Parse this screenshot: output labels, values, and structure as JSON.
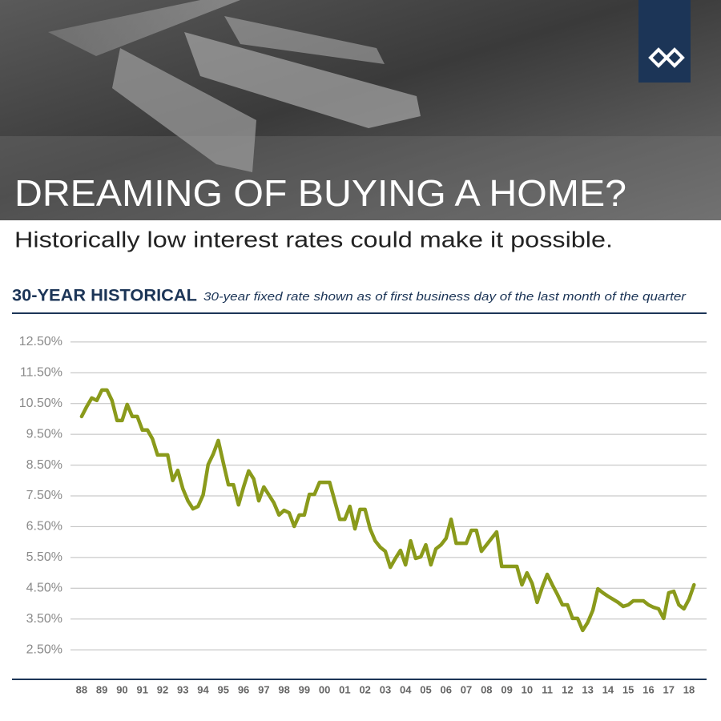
{
  "header": {
    "title": "DREAMING OF BUYING A HOME?",
    "subtitle": "Historically low interest rates could make it possible."
  },
  "chart_data": {
    "type": "line",
    "title": "30-YEAR HISTORICAL",
    "subtitle": "30-year fixed rate shown as of first business day of the last month of the quarter",
    "color": "#8a9a1b",
    "x": [
      1988,
      1988.25,
      1988.5,
      1988.75,
      1989,
      1989.25,
      1989.5,
      1989.75,
      1990,
      1990.25,
      1990.5,
      1990.75,
      1991,
      1991.25,
      1991.5,
      1991.75,
      1992,
      1992.25,
      1992.5,
      1992.75,
      1993,
      1993.25,
      1993.5,
      1993.75,
      1994,
      1994.25,
      1994.5,
      1994.75,
      1995,
      1995.25,
      1995.5,
      1995.75,
      1996,
      1996.25,
      1996.5,
      1996.75,
      1997,
      1997.25,
      1997.5,
      1997.75,
      1998,
      1998.25,
      1998.5,
      1998.75,
      1999,
      1999.25,
      1999.5,
      1999.75,
      2000,
      2000.25,
      2000.5,
      2000.75,
      2001,
      2001.25,
      2001.5,
      2001.75,
      2002,
      2002.25,
      2002.5,
      2002.75,
      2003,
      2003.25,
      2003.5,
      2003.75,
      2004,
      2004.25,
      2004.5,
      2004.75,
      2005,
      2005.25,
      2005.5,
      2005.75,
      2006,
      2006.25,
      2006.5,
      2006.75,
      2007,
      2007.25,
      2007.5,
      2007.75,
      2008,
      2008.25,
      2008.5,
      2008.75,
      2009,
      2009.25,
      2009.5,
      2009.75,
      2010,
      2010.25,
      2010.5,
      2010.75,
      2011,
      2011.25,
      2011.5,
      2011.75,
      2012,
      2012.25,
      2012.5,
      2012.75,
      2013,
      2013.25,
      2013.5,
      2013.75,
      2014,
      2014.25,
      2014.5,
      2014.75,
      2015,
      2015.25,
      2015.5,
      2015.75,
      2016,
      2016.25,
      2016.5,
      2016.75,
      2017,
      2017.25,
      2017.5,
      2017.75,
      2018,
      2018.25
    ],
    "values": [
      10.08,
      10.4,
      10.68,
      10.6,
      10.94,
      10.94,
      10.6,
      9.95,
      9.95,
      10.47,
      10.08,
      10.08,
      9.64,
      9.64,
      9.35,
      8.83,
      8.83,
      8.83,
      8.0,
      8.33,
      7.73,
      7.34,
      7.08,
      7.16,
      7.53,
      8.52,
      8.86,
      9.3,
      8.57,
      7.86,
      7.86,
      7.21,
      7.79,
      8.31,
      8.05,
      7.34,
      7.79,
      7.53,
      7.27,
      6.88,
      7.03,
      6.95,
      6.51,
      6.88,
      6.88,
      7.55,
      7.55,
      7.94,
      7.94,
      7.94,
      7.34,
      6.74,
      6.74,
      7.16,
      6.43,
      7.06,
      7.06,
      6.43,
      6.04,
      5.83,
      5.7,
      5.18,
      5.47,
      5.73,
      5.26,
      6.04,
      5.47,
      5.52,
      5.91,
      5.26,
      5.78,
      5.91,
      6.12,
      6.74,
      5.96,
      5.96,
      5.96,
      6.38,
      6.38,
      5.7,
      5.91,
      6.12,
      6.33,
      5.21,
      5.21,
      5.21,
      5.21,
      4.61,
      5.0,
      4.66,
      4.04,
      4.53,
      4.95,
      4.61,
      4.3,
      3.96,
      3.96,
      3.52,
      3.52,
      3.13,
      3.39,
      3.78,
      4.48,
      4.35,
      4.24,
      4.14,
      4.04,
      3.91,
      3.96,
      4.09,
      4.09,
      4.09,
      3.96,
      3.88,
      3.83,
      3.52,
      4.35,
      4.4,
      3.96,
      3.83,
      4.14,
      4.61
    ],
    "xlim": [
      1987.45,
      2018.87
    ],
    "xticks": [
      {
        "value": 1988,
        "label": "88"
      },
      {
        "value": 1989,
        "label": "89"
      },
      {
        "value": 1990,
        "label": "90"
      },
      {
        "value": 1991,
        "label": "91"
      },
      {
        "value": 1992,
        "label": "92"
      },
      {
        "value": 1993,
        "label": "93"
      },
      {
        "value": 1994,
        "label": "94"
      },
      {
        "value": 1995,
        "label": "95"
      },
      {
        "value": 1996,
        "label": "96"
      },
      {
        "value": 1997,
        "label": "97"
      },
      {
        "value": 1998,
        "label": "98"
      },
      {
        "value": 1999,
        "label": "99"
      },
      {
        "value": 2000,
        "label": "00"
      },
      {
        "value": 2001,
        "label": "01"
      },
      {
        "value": 2002,
        "label": "02"
      },
      {
        "value": 2003,
        "label": "03"
      },
      {
        "value": 2004,
        "label": "04"
      },
      {
        "value": 2005,
        "label": "05"
      },
      {
        "value": 2006,
        "label": "06"
      },
      {
        "value": 2007,
        "label": "07"
      },
      {
        "value": 2008,
        "label": "08"
      },
      {
        "value": 2009,
        "label": "09"
      },
      {
        "value": 2010,
        "label": "10"
      },
      {
        "value": 2011,
        "label": "11"
      },
      {
        "value": 2012,
        "label": "12"
      },
      {
        "value": 2013,
        "label": "13"
      },
      {
        "value": 2014,
        "label": "14"
      },
      {
        "value": 2015,
        "label": "15"
      },
      {
        "value": 2016,
        "label": "16"
      },
      {
        "value": 2017,
        "label": "17"
      },
      {
        "value": 2018,
        "label": "18"
      }
    ],
    "ylim": [
      1.54,
      13.2
    ],
    "yticks": [
      {
        "value": 12.5,
        "label": "12.50%"
      },
      {
        "value": 11.5,
        "label": "11.50%"
      },
      {
        "value": 10.5,
        "label": "10.50%"
      },
      {
        "value": 9.5,
        "label": "9.50%"
      },
      {
        "value": 8.5,
        "label": "8.50%"
      },
      {
        "value": 7.5,
        "label": "7.50%"
      },
      {
        "value": 6.5,
        "label": "6.50%"
      },
      {
        "value": 5.5,
        "label": "5.50%"
      },
      {
        "value": 4.5,
        "label": "4.50%"
      },
      {
        "value": 3.5,
        "label": "3.50%"
      },
      {
        "value": 2.5,
        "label": "2.50%"
      }
    ],
    "grid": true
  }
}
